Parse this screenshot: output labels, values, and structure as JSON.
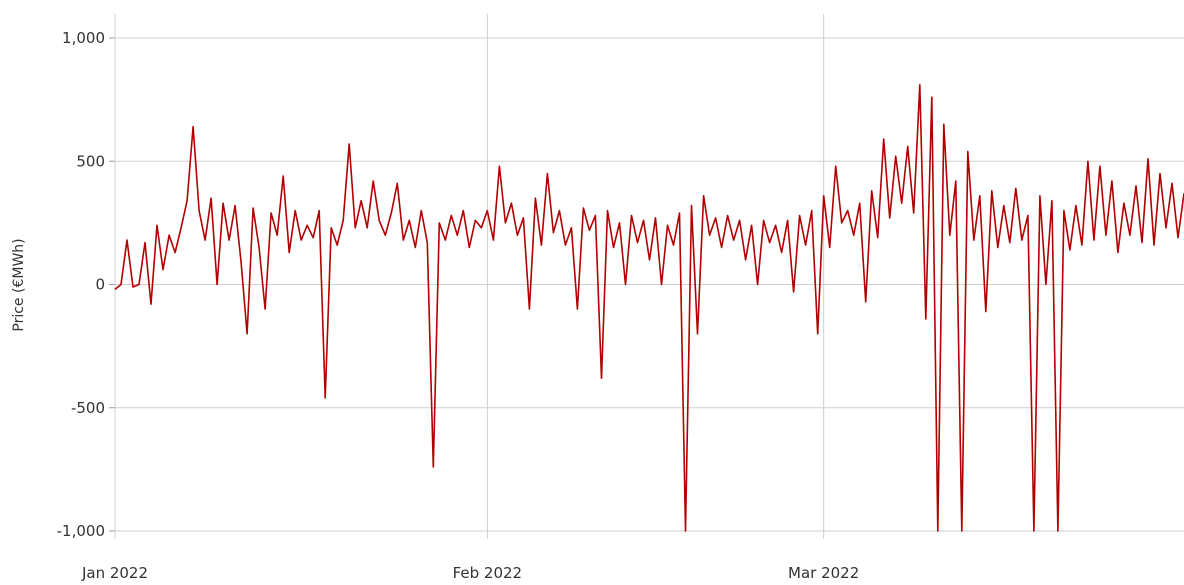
{
  "chart_data": {
    "type": "line",
    "title": "",
    "xlabel": "",
    "ylabel": "Price (€MWh)",
    "ylim": [
      -1000,
      1000
    ],
    "xlim": [
      "2022-01-01",
      "2022-03-31"
    ],
    "y_ticks": [
      1000,
      500,
      0,
      -500,
      -1000
    ],
    "y_tick_labels": [
      "1,000",
      "500",
      "0",
      "-500",
      "-1,000"
    ],
    "x_ticks": [
      "2022-01-01",
      "2022-02-01",
      "2022-03-01"
    ],
    "x_tick_labels": [
      "Jan 2022",
      "Feb 2022",
      "Mar 2022"
    ],
    "grid": true,
    "line_color": "#b20000",
    "series": [
      {
        "points": [
          [
            "2022-01-01",
            -20
          ],
          [
            "2022-01-01T12:00",
            0
          ],
          [
            "2022-01-02",
            180
          ],
          [
            "2022-01-02T12:00",
            -10
          ],
          [
            "2022-01-03",
            0
          ],
          [
            "2022-01-03T12:00",
            170
          ],
          [
            "2022-01-04",
            -80
          ],
          [
            "2022-01-04T12:00",
            240
          ],
          [
            "2022-01-05",
            60
          ],
          [
            "2022-01-05T12:00",
            200
          ],
          [
            "2022-01-06",
            130
          ],
          [
            "2022-01-06T12:00",
            230
          ],
          [
            "2022-01-07",
            340
          ],
          [
            "2022-01-07T12:00",
            640
          ],
          [
            "2022-01-08",
            300
          ],
          [
            "2022-01-08T12:00",
            180
          ],
          [
            "2022-01-09",
            350
          ],
          [
            "2022-01-09T12:00",
            0
          ],
          [
            "2022-01-10",
            330
          ],
          [
            "2022-01-10T12:00",
            180
          ],
          [
            "2022-01-11",
            320
          ],
          [
            "2022-01-11T12:00",
            90
          ],
          [
            "2022-01-12",
            -200
          ],
          [
            "2022-01-12T12:00",
            310
          ],
          [
            "2022-01-13",
            150
          ],
          [
            "2022-01-13T12:00",
            -100
          ],
          [
            "2022-01-14",
            290
          ],
          [
            "2022-01-14T12:00",
            200
          ],
          [
            "2022-01-15",
            440
          ],
          [
            "2022-01-15T12:00",
            130
          ],
          [
            "2022-01-16",
            300
          ],
          [
            "2022-01-16T12:00",
            180
          ],
          [
            "2022-01-17",
            240
          ],
          [
            "2022-01-17T12:00",
            190
          ],
          [
            "2022-01-18",
            300
          ],
          [
            "2022-01-18T12:00",
            -460
          ],
          [
            "2022-01-19",
            230
          ],
          [
            "2022-01-19T12:00",
            160
          ],
          [
            "2022-01-20",
            260
          ],
          [
            "2022-01-20T12:00",
            570
          ],
          [
            "2022-01-21",
            230
          ],
          [
            "2022-01-21T12:00",
            340
          ],
          [
            "2022-01-22",
            230
          ],
          [
            "2022-01-22T12:00",
            420
          ],
          [
            "2022-01-23",
            260
          ],
          [
            "2022-01-23T12:00",
            200
          ],
          [
            "2022-01-24",
            290
          ],
          [
            "2022-01-24T12:00",
            410
          ],
          [
            "2022-01-25",
            180
          ],
          [
            "2022-01-25T12:00",
            260
          ],
          [
            "2022-01-26",
            150
          ],
          [
            "2022-01-26T12:00",
            300
          ],
          [
            "2022-01-27",
            170
          ],
          [
            "2022-01-27T12:00",
            -740
          ],
          [
            "2022-01-28",
            250
          ],
          [
            "2022-01-28T12:00",
            180
          ],
          [
            "2022-01-29",
            280
          ],
          [
            "2022-01-29T12:00",
            200
          ],
          [
            "2022-01-30",
            300
          ],
          [
            "2022-01-30T12:00",
            150
          ],
          [
            "2022-01-31",
            260
          ],
          [
            "2022-01-31T12:00",
            230
          ],
          [
            "2022-02-01",
            300
          ],
          [
            "2022-02-01T12:00",
            180
          ],
          [
            "2022-02-02",
            480
          ],
          [
            "2022-02-02T12:00",
            250
          ],
          [
            "2022-02-03",
            330
          ],
          [
            "2022-02-03T12:00",
            200
          ],
          [
            "2022-02-04",
            270
          ],
          [
            "2022-02-04T12:00",
            -100
          ],
          [
            "2022-02-05",
            350
          ],
          [
            "2022-02-05T12:00",
            160
          ],
          [
            "2022-02-06",
            450
          ],
          [
            "2022-02-06T12:00",
            210
          ],
          [
            "2022-02-07",
            300
          ],
          [
            "2022-02-07T12:00",
            160
          ],
          [
            "2022-02-08",
            230
          ],
          [
            "2022-02-08T12:00",
            -100
          ],
          [
            "2022-02-09",
            310
          ],
          [
            "2022-02-09T12:00",
            220
          ],
          [
            "2022-02-10",
            280
          ],
          [
            "2022-02-10T12:00",
            -380
          ],
          [
            "2022-02-11",
            300
          ],
          [
            "2022-02-11T12:00",
            150
          ],
          [
            "2022-02-12",
            250
          ],
          [
            "2022-02-12T12:00",
            0
          ],
          [
            "2022-02-13",
            280
          ],
          [
            "2022-02-13T12:00",
            170
          ],
          [
            "2022-02-14",
            260
          ],
          [
            "2022-02-14T12:00",
            100
          ],
          [
            "2022-02-15",
            270
          ],
          [
            "2022-02-15T12:00",
            0
          ],
          [
            "2022-02-16",
            240
          ],
          [
            "2022-02-16T12:00",
            160
          ],
          [
            "2022-02-17",
            290
          ],
          [
            "2022-02-17T12:00",
            -1000
          ],
          [
            "2022-02-18",
            320
          ],
          [
            "2022-02-18T12:00",
            -200
          ],
          [
            "2022-02-19",
            360
          ],
          [
            "2022-02-19T12:00",
            200
          ],
          [
            "2022-02-20",
            270
          ],
          [
            "2022-02-20T12:00",
            150
          ],
          [
            "2022-02-21",
            280
          ],
          [
            "2022-02-21T12:00",
            180
          ],
          [
            "2022-02-22",
            260
          ],
          [
            "2022-02-22T12:00",
            100
          ],
          [
            "2022-02-23",
            240
          ],
          [
            "2022-02-23T12:00",
            0
          ],
          [
            "2022-02-24",
            260
          ],
          [
            "2022-02-24T12:00",
            170
          ],
          [
            "2022-02-25",
            240
          ],
          [
            "2022-02-25T12:00",
            130
          ],
          [
            "2022-02-26",
            260
          ],
          [
            "2022-02-26T12:00",
            -30
          ],
          [
            "2022-02-27",
            280
          ],
          [
            "2022-02-27T12:00",
            160
          ],
          [
            "2022-02-28",
            300
          ],
          [
            "2022-02-28T12:00",
            -200
          ],
          [
            "2022-03-01",
            360
          ],
          [
            "2022-03-01T12:00",
            150
          ],
          [
            "2022-03-02",
            480
          ],
          [
            "2022-03-02T12:00",
            250
          ],
          [
            "2022-03-03",
            300
          ],
          [
            "2022-03-03T12:00",
            200
          ],
          [
            "2022-03-04",
            330
          ],
          [
            "2022-03-04T12:00",
            -70
          ],
          [
            "2022-03-05",
            380
          ],
          [
            "2022-03-05T12:00",
            190
          ],
          [
            "2022-03-06",
            590
          ],
          [
            "2022-03-06T12:00",
            270
          ],
          [
            "2022-03-07",
            520
          ],
          [
            "2022-03-07T12:00",
            330
          ],
          [
            "2022-03-08",
            560
          ],
          [
            "2022-03-08T12:00",
            290
          ],
          [
            "2022-03-09",
            810
          ],
          [
            "2022-03-09T12:00",
            -140
          ],
          [
            "2022-03-10",
            760
          ],
          [
            "2022-03-10T12:00",
            -1000
          ],
          [
            "2022-03-11",
            650
          ],
          [
            "2022-03-11T12:00",
            200
          ],
          [
            "2022-03-12",
            420
          ],
          [
            "2022-03-12T12:00",
            -1000
          ],
          [
            "2022-03-13",
            540
          ],
          [
            "2022-03-13T12:00",
            180
          ],
          [
            "2022-03-14",
            360
          ],
          [
            "2022-03-14T12:00",
            -110
          ],
          [
            "2022-03-15",
            380
          ],
          [
            "2022-03-15T12:00",
            150
          ],
          [
            "2022-03-16",
            320
          ],
          [
            "2022-03-16T12:00",
            170
          ],
          [
            "2022-03-17",
            390
          ],
          [
            "2022-03-17T12:00",
            180
          ],
          [
            "2022-03-18",
            280
          ],
          [
            "2022-03-18T12:00",
            -1000
          ],
          [
            "2022-03-19",
            360
          ],
          [
            "2022-03-19T12:00",
            0
          ],
          [
            "2022-03-20",
            340
          ],
          [
            "2022-03-20T12:00",
            -1000
          ],
          [
            "2022-03-21",
            300
          ],
          [
            "2022-03-21T12:00",
            140
          ],
          [
            "2022-03-22",
            320
          ],
          [
            "2022-03-22T12:00",
            160
          ],
          [
            "2022-03-23",
            500
          ],
          [
            "2022-03-23T12:00",
            180
          ],
          [
            "2022-03-24",
            480
          ],
          [
            "2022-03-24T12:00",
            200
          ],
          [
            "2022-03-25",
            420
          ],
          [
            "2022-03-25T12:00",
            130
          ],
          [
            "2022-03-26",
            330
          ],
          [
            "2022-03-26T12:00",
            200
          ],
          [
            "2022-03-27",
            400
          ],
          [
            "2022-03-27T12:00",
            170
          ],
          [
            "2022-03-28",
            510
          ],
          [
            "2022-03-28T12:00",
            160
          ],
          [
            "2022-03-29",
            450
          ],
          [
            "2022-03-29T12:00",
            230
          ],
          [
            "2022-03-30",
            410
          ],
          [
            "2022-03-30T12:00",
            190
          ],
          [
            "2022-03-31",
            370
          ]
        ]
      }
    ]
  }
}
